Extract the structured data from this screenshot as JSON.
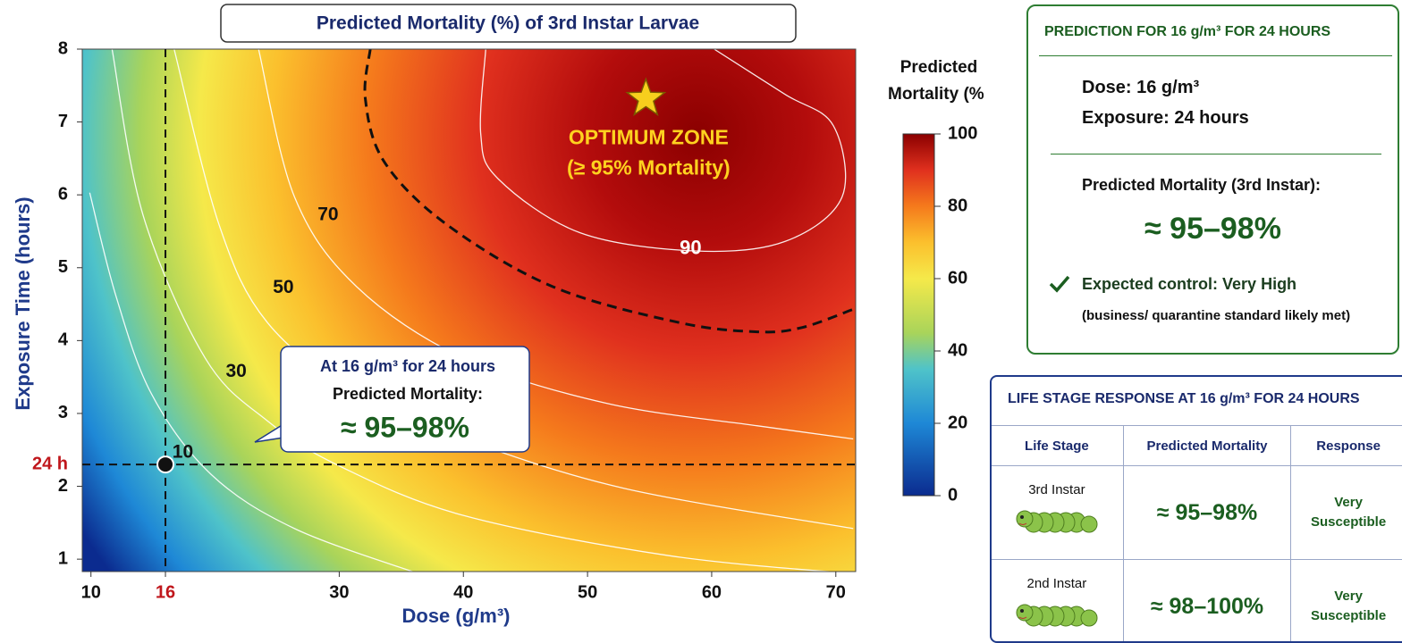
{
  "chart_data": {
    "type": "contour",
    "title": "Predicted Mortality (%) of 3rd Instar Larvae",
    "xlabel": "Dose (g/m³)",
    "ylabel": "Exposure Time (hours)",
    "xlim": [
      9.3,
      71.6
    ],
    "ylim": [
      0.83,
      8
    ],
    "xticks": [
      10,
      16,
      30,
      40,
      50,
      60,
      70
    ],
    "yticks": [
      1,
      2,
      3,
      4,
      5,
      6,
      7,
      8
    ],
    "highlight": {
      "x": 16,
      "y": 2.3,
      "y_label": "24 h",
      "color": "#c0171c"
    },
    "colorbar": {
      "title_lines": [
        "Predicted",
        "Mortality (%)"
      ],
      "lim": [
        0,
        100
      ],
      "ticks": [
        0,
        20,
        40,
        60,
        80,
        100
      ]
    },
    "contours": [
      {
        "level": 10,
        "label_x": 17.4,
        "label_y": 2.46,
        "x": [
          9.9,
          12.0,
          14.9,
          19.7,
          26.4,
          36.4
        ],
        "y": [
          6.03,
          4.62,
          3.26,
          2.16,
          1.42,
          0.8
        ]
      },
      {
        "level": 30,
        "label_x": 21.7,
        "label_y": 3.57,
        "x": [
          11.7,
          14.2,
          19.2,
          24.2,
          30.0,
          40.0,
          56.5,
          71.4
        ],
        "y": [
          8,
          5.72,
          3.76,
          2.9,
          2.28,
          1.6,
          1.05,
          0.8
        ]
      },
      {
        "level": 50,
        "label_x": 25.5,
        "label_y": 4.72,
        "x": [
          16.7,
          20.3,
          24.2,
          31.4,
          40.0,
          53.0,
          71.4
        ],
        "y": [
          8,
          5.6,
          4.25,
          3.26,
          2.65,
          1.97,
          1.42
        ]
      },
      {
        "level": 70,
        "label_x": 29.1,
        "label_y": 5.72,
        "x": [
          23.5,
          26.4,
          31.4,
          40.0,
          51.5,
          63.7,
          71.4
        ],
        "y": [
          8,
          5.97,
          4.74,
          3.76,
          3.14,
          2.83,
          2.65
        ]
      },
      {
        "level": 90,
        "label_x": 58.3,
        "label_y": 5.26,
        "x": [
          41.8,
          41.4,
          42.8,
          49.4,
          58.7,
          65.9,
          70.5,
          69.8,
          65.9,
          60.2
        ],
        "y": [
          8,
          6.83,
          6.22,
          5.48,
          5.23,
          5.36,
          5.97,
          6.95,
          7.38,
          8
        ]
      }
    ],
    "threshold": {
      "x": [
        32.5,
        32.1,
        33.6,
        38.6,
        47.2,
        57.3,
        63.7,
        67.3,
        71.4
      ],
      "y": [
        8,
        7.32,
        6.46,
        5.6,
        4.74,
        4.25,
        4.12,
        4.18,
        4.43
      ]
    },
    "optimum": {
      "x": 54.7,
      "y": 7.32,
      "lines": [
        "OPTIMUM ZONE",
        "(≥ 95% Mortality)"
      ]
    },
    "callout": {
      "lines": [
        "At 16 g/m³ for 24 hours",
        "Predicted Mortality:"
      ],
      "value": "≈ 95–98%"
    }
  },
  "prediction_panel": {
    "title": "PREDICTION FOR 16 g/m³ FOR 24 HOURS",
    "dose": "Dose: 16 g/m³",
    "exposure": "Exposure: 24 hours",
    "result_label": "Predicted Mortality (3rd Instar):",
    "result_value": "≈ 95–98%",
    "control": "Expected control: Very High",
    "note": "(business/ quarantine standard likely met)"
  },
  "life_stage_table": {
    "title": "LIFE STAGE RESPONSE AT 16 g/m³ FOR 24 HOURS",
    "headers": [
      "Life Stage",
      "Predicted Mortality",
      "Response"
    ],
    "rows": [
      [
        "3rd Instar",
        "≈ 95–98%",
        "Very Susceptible"
      ],
      [
        "2nd Instar",
        "≈ 98–100%",
        "Very Susceptible"
      ]
    ]
  }
}
